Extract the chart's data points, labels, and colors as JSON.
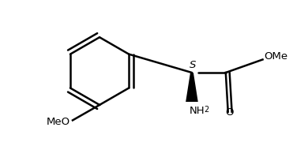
{
  "bg_color": "#ffffff",
  "line_color": "#000000",
  "text_color": "#000000",
  "line_width": 1.8,
  "font_size": 9.5,
  "figsize": [
    3.71,
    1.85
  ],
  "dpi": 100,
  "S_label": "S",
  "O_label": "O",
  "OMe_label": "OMe",
  "MeO_label": "MeO",
  "NH_label": "NH",
  "two_label": "2"
}
